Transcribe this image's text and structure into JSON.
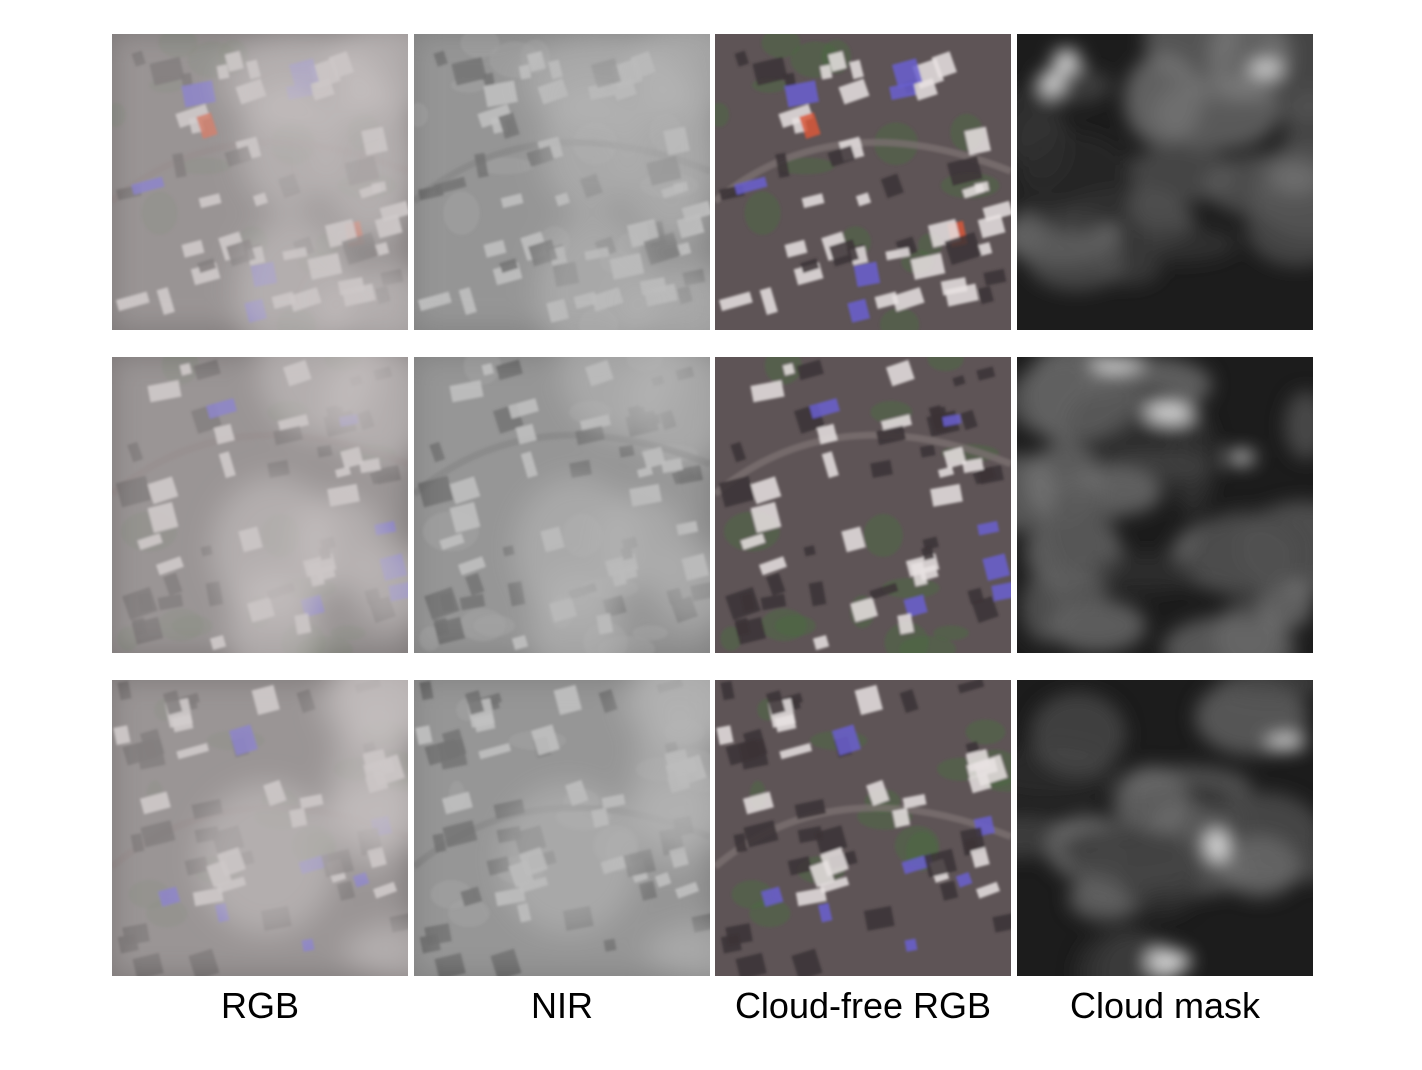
{
  "columns": [
    {
      "label": "RGB",
      "kind": "rgb"
    },
    {
      "label": "NIR",
      "kind": "nir"
    },
    {
      "label": "Cloud-free RGB",
      "kind": "clear"
    },
    {
      "label": "Cloud mask",
      "kind": "mask"
    }
  ],
  "rows": 3,
  "colors": {
    "roof_blue": "#6a5fd0",
    "roof_red": "#d8583a",
    "haze": "#c9c3c3",
    "vegetation": "#4f6b45"
  }
}
